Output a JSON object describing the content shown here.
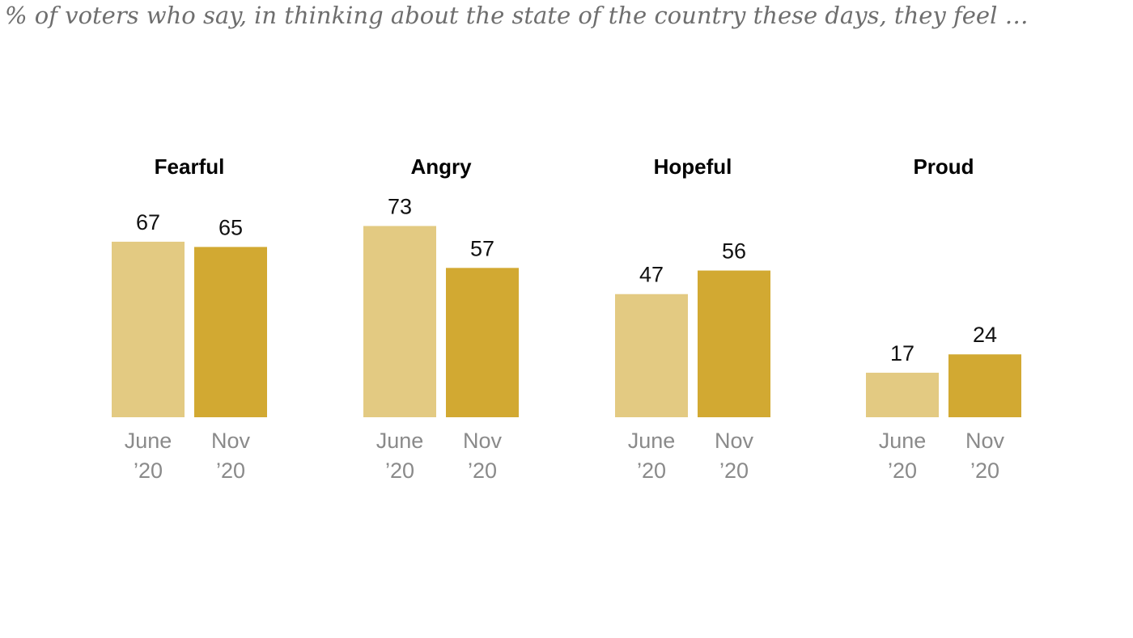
{
  "chart_data": {
    "type": "bar",
    "title": "% of voters who say, in thinking about the state of the country these days, they feel …",
    "ylim": [
      0,
      100
    ],
    "grid": false,
    "legend": "none",
    "series_colors": {
      "June ’20": "#e3ca82",
      "Nov ’20": "#d2a932"
    },
    "panels": [
      {
        "title": "Fearful",
        "categories": [
          {
            "line1": "June",
            "line2": "’20"
          },
          {
            "line1": "Nov",
            "line2": "’20"
          }
        ],
        "values": [
          67,
          65
        ]
      },
      {
        "title": "Angry",
        "categories": [
          {
            "line1": "June",
            "line2": "’20"
          },
          {
            "line1": "Nov",
            "line2": "’20"
          }
        ],
        "values": [
          73,
          57
        ]
      },
      {
        "title": "Hopeful",
        "categories": [
          {
            "line1": "June",
            "line2": "’20"
          },
          {
            "line1": "Nov",
            "line2": "’20"
          }
        ],
        "values": [
          47,
          56
        ]
      },
      {
        "title": "Proud",
        "categories": [
          {
            "line1": "June",
            "line2": "’20"
          },
          {
            "line1": "Nov",
            "line2": "’20"
          }
        ],
        "values": [
          17,
          24
        ]
      }
    ]
  }
}
